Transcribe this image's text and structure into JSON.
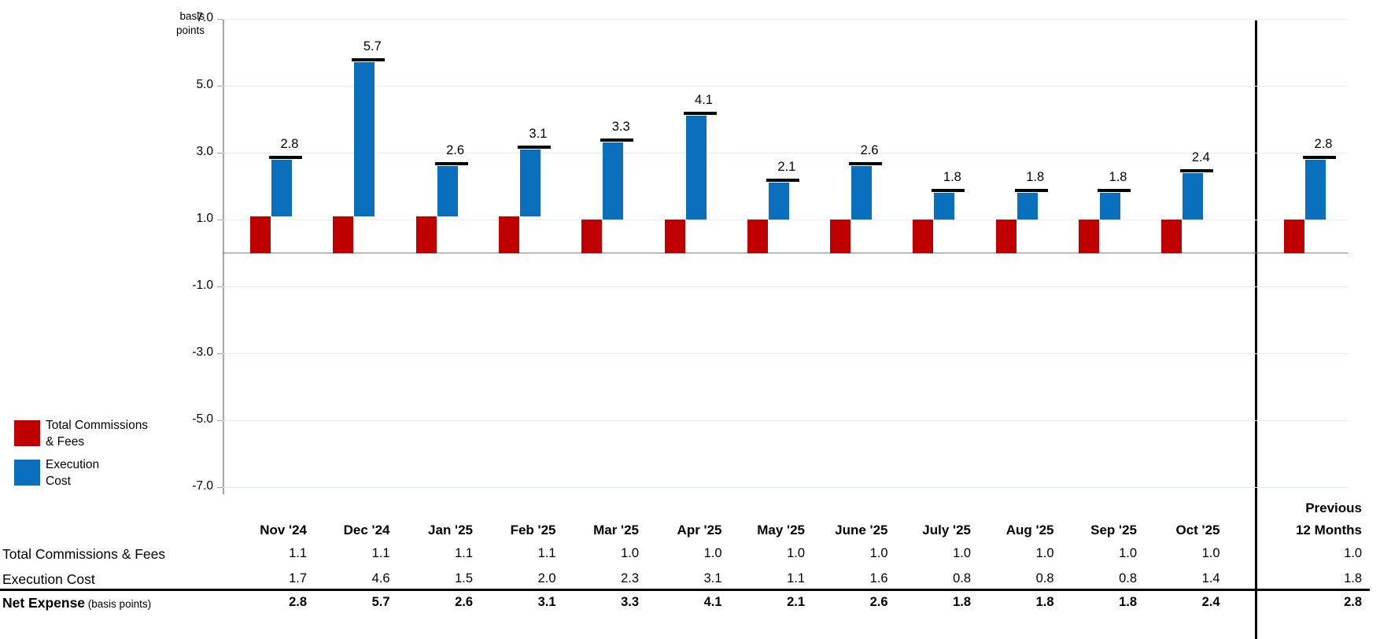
{
  "chart": {
    "unit_label_lines": [
      "basis",
      "points"
    ],
    "y_tick_labels": [
      "7.0",
      "5.0",
      "3.0",
      "1.0",
      "-1.0",
      "-3.0",
      "-5.0",
      "-7.0"
    ]
  },
  "chart_data": {
    "type": "bar",
    "stacked": true,
    "title": "",
    "xlabel": "",
    "ylabel": "basis points",
    "ylim": [
      -7.0,
      7.0
    ],
    "gridline_values": [
      7,
      5,
      3,
      1,
      -1,
      -3,
      -5,
      -7
    ],
    "legend_position": "left",
    "categories": [
      "Nov '24",
      "Dec '24",
      "Jan '25",
      "Feb '25",
      "Mar '25",
      "Apr '25",
      "May '25",
      "June '25",
      "July '25",
      "Aug '25",
      "Sep '25",
      "Oct '25",
      "Previous 12 Months"
    ],
    "series": [
      {
        "name": "Total Commissions & Fees",
        "color": "#C00000",
        "values": [
          1.1,
          1.1,
          1.1,
          1.1,
          1.0,
          1.0,
          1.0,
          1.0,
          1.0,
          1.0,
          1.0,
          1.0,
          1.0
        ]
      },
      {
        "name": "Execution Cost",
        "color": "#0A70BE",
        "values": [
          1.7,
          4.6,
          1.5,
          2.0,
          2.3,
          3.1,
          1.1,
          1.6,
          0.8,
          0.8,
          0.8,
          1.4,
          1.8
        ]
      }
    ],
    "totals": [
      2.8,
      5.7,
      2.6,
      3.1,
      3.3,
      4.1,
      2.1,
      2.6,
      1.8,
      1.8,
      1.8,
      2.4,
      2.8
    ],
    "total_labels": [
      "2.8",
      "5.7",
      "2.6",
      "3.1",
      "3.3",
      "4.1",
      "2.1",
      "2.6",
      "1.8",
      "1.8",
      "1.8",
      "2.4",
      "2.8"
    ]
  },
  "legend": {
    "items": [
      {
        "name": "total-commissions-fees",
        "color": "#C00000",
        "label_lines": [
          "Total Commissions",
          "& Fees"
        ]
      },
      {
        "name": "execution-cost",
        "color": "#0A70BE",
        "label_lines": [
          "Execution",
          "Cost"
        ]
      }
    ]
  },
  "table": {
    "month_columns": [
      "Nov '24",
      "Dec '24",
      "Jan '25",
      "Feb '25",
      "Mar '25",
      "Apr '25",
      "May '25",
      "June '25",
      "July '25",
      "Aug '25",
      "Sep '25",
      "Oct '25"
    ],
    "last_column_header_lines": [
      "Previous",
      "12 Months"
    ],
    "rows": [
      {
        "label": "Total Commissions & Fees",
        "label_suffix": "",
        "bold": false,
        "values": [
          "1.1",
          "1.1",
          "1.1",
          "1.1",
          "1.0",
          "1.0",
          "1.0",
          "1.0",
          "1.0",
          "1.0",
          "1.0",
          "1.0"
        ],
        "last_value": "1.0"
      },
      {
        "label": "Execution Cost",
        "label_suffix": "",
        "bold": false,
        "values": [
          "1.7",
          "4.6",
          "1.5",
          "2.0",
          "2.3",
          "3.1",
          "1.1",
          "1.6",
          "0.8",
          "0.8",
          "0.8",
          "1.4"
        ],
        "last_value": "1.8"
      },
      {
        "label": "Net Expense",
        "label_suffix": "(basis points)",
        "bold": true,
        "values": [
          "2.8",
          "5.7",
          "2.6",
          "3.1",
          "3.3",
          "4.1",
          "2.1",
          "2.6",
          "1.8",
          "1.8",
          "1.8",
          "2.4"
        ],
        "last_value": "2.8"
      }
    ]
  },
  "colors": {
    "commissions_bar": "#C00000",
    "execution_bar": "#0A70BE",
    "total_dash": "#000000",
    "zero_line": "#7f7f7f",
    "axis_line": "#a6a6a6",
    "gridline": "#e6edf5",
    "separator_line": "#000000",
    "table_rule": "#000000"
  }
}
